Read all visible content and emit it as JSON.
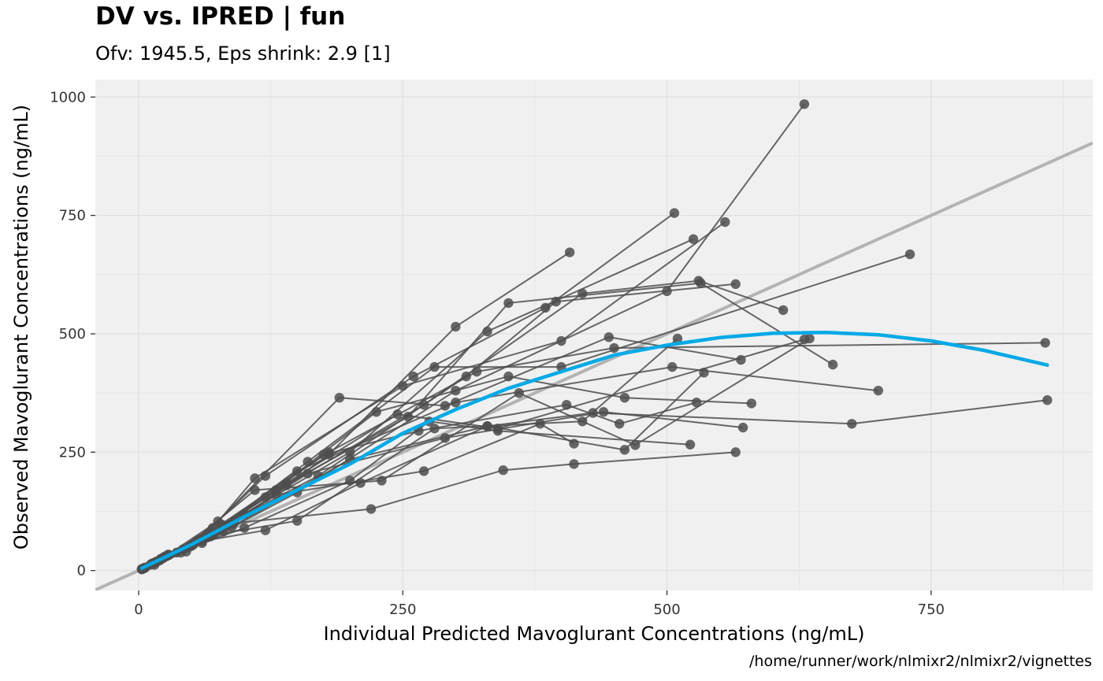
{
  "chart_data": {
    "type": "scatter",
    "title": "DV vs. IPRED | fun",
    "subtitle": "Ofv: 1945.5, Eps shrink: 2.9 [1]",
    "caption": "/home/runner/work/nlmixr2/nlmixr2/vignettes",
    "xlabel": "Individual Predicted Mavoglurant Concentrations (ng/mL)",
    "ylabel": "Observed Mavoglurant Concentrations (ng/mL)",
    "xlim": [
      -41,
      903
    ],
    "ylim": [
      -42,
      1037
    ],
    "x_ticks": [
      0,
      250,
      500,
      750
    ],
    "y_ticks": [
      0,
      250,
      500,
      750,
      1000
    ],
    "grid": true,
    "legend": "none",
    "colors": {
      "panel": "#f0f0f0",
      "grid": "#e0e0e0",
      "points": "#4d4d4d",
      "lines": "#4d4d4d",
      "identity": "#b3b3b3",
      "smooth": "#03a9e6"
    },
    "identity_line": {
      "slope": 1,
      "intercept": 0
    },
    "smooth": {
      "x": [
        3,
        50,
        100,
        150,
        200,
        250,
        300,
        350,
        400,
        450,
        500,
        550,
        600,
        650,
        700,
        750,
        800,
        860
      ],
      "y": [
        5,
        55,
        114,
        170,
        225,
        290,
        340,
        385,
        420,
        455,
        476,
        492,
        501,
        503,
        498,
        485,
        465,
        434
      ]
    },
    "series": [
      {
        "x": [
          3,
          12,
          40,
          80,
          180,
          300,
          408
        ],
        "y": [
          3,
          14,
          38,
          82,
          245,
          515,
          672
        ]
      },
      {
        "x": [
          5,
          20,
          60,
          150,
          300,
          500,
          630
        ],
        "y": [
          5,
          22,
          58,
          165,
          380,
          590,
          985
        ]
      },
      {
        "x": [
          4,
          18,
          55,
          120,
          260,
          385,
          507
        ],
        "y": [
          4,
          20,
          62,
          200,
          410,
          555,
          755
        ]
      },
      {
        "x": [
          6,
          25,
          70,
          110,
          250,
          400,
          555
        ],
        "y": [
          6,
          30,
          90,
          195,
          390,
          485,
          736
        ]
      },
      {
        "x": [
          3,
          15,
          45,
          100,
          200,
          330,
          525
        ],
        "y": [
          3,
          12,
          40,
          120,
          250,
          505,
          700
        ]
      },
      {
        "x": [
          5,
          22,
          65,
          160,
          280,
          400,
          730
        ],
        "y": [
          5,
          25,
          70,
          230,
          430,
          430,
          668
        ]
      },
      {
        "x": [
          4,
          20,
          58,
          140,
          270,
          420,
          530,
          610
        ],
        "y": [
          4,
          22,
          66,
          180,
          350,
          585,
          612,
          550
        ]
      },
      {
        "x": [
          6,
          28,
          80,
          170,
          310,
          395,
          565
        ],
        "y": [
          6,
          34,
          95,
          200,
          410,
          568,
          605
        ]
      },
      {
        "x": [
          3,
          14,
          50,
          130,
          255,
          350,
          532,
          657
        ],
        "y": [
          3,
          16,
          52,
          170,
          325,
          565,
          607,
          435
        ]
      },
      {
        "x": [
          5,
          24,
          75,
          190,
          290,
          445,
          570
        ],
        "y": [
          5,
          28,
          104,
          365,
          348,
          493,
          445
        ]
      },
      {
        "x": [
          4,
          19,
          62,
          150,
          300,
          505,
          700
        ],
        "y": [
          4,
          21,
          68,
          210,
          355,
          430,
          380
        ]
      },
      {
        "x": [
          6,
          26,
          78,
          180,
          320,
          450,
          858
        ],
        "y": [
          6,
          30,
          98,
          250,
          420,
          470,
          481
        ]
      },
      {
        "x": [
          3,
          16,
          48,
          120,
          225,
          350,
          460,
          580
        ],
        "y": [
          3,
          18,
          50,
          155,
          335,
          410,
          365,
          353
        ]
      },
      {
        "x": [
          5,
          23,
          68,
          175,
          265,
          405,
          455,
          528
        ],
        "y": [
          5,
          27,
          72,
          245,
          295,
          350,
          310,
          355
        ]
      },
      {
        "x": [
          4,
          21,
          66,
          140,
          245,
          340,
          630
        ],
        "y": [
          4,
          24,
          78,
          185,
          330,
          300,
          488
        ]
      },
      {
        "x": [
          6,
          27,
          88,
          200,
          330,
          460,
          535
        ],
        "y": [
          6,
          31,
          92,
          235,
          305,
          255,
          418
        ]
      },
      {
        "x": [
          3,
          13,
          42,
          110,
          230,
          360,
          470,
          635
        ],
        "y": [
          3,
          15,
          45,
          170,
          190,
          375,
          265,
          490
        ]
      },
      {
        "x": [
          5,
          21,
          72,
          160,
          290,
          440,
          572
        ],
        "y": [
          5,
          25,
          78,
          205,
          280,
          335,
          302
        ]
      },
      {
        "x": [
          4,
          17,
          52,
          130,
          270,
          380,
          412
        ],
        "y": [
          4,
          19,
          55,
          160,
          210,
          310,
          268
        ]
      },
      {
        "x": [
          6,
          29,
          90,
          220,
          345,
          412,
          565
        ],
        "y": [
          6,
          33,
          100,
          130,
          212,
          225,
          250
        ]
      },
      {
        "x": [
          3,
          11,
          36,
          100,
          200,
          275,
          340,
          522
        ],
        "y": [
          3,
          12,
          38,
          90,
          190,
          315,
          295,
          266
        ]
      },
      {
        "x": [
          5,
          23,
          70,
          150,
          280,
          420,
          510
        ],
        "y": [
          5,
          26,
          75,
          105,
          300,
          315,
          490
        ]
      },
      {
        "x": [
          4,
          20,
          60,
          120,
          210,
          330,
          430,
          675,
          860
        ],
        "y": [
          4,
          22,
          62,
          85,
          185,
          305,
          333,
          310,
          360
        ]
      }
    ]
  }
}
